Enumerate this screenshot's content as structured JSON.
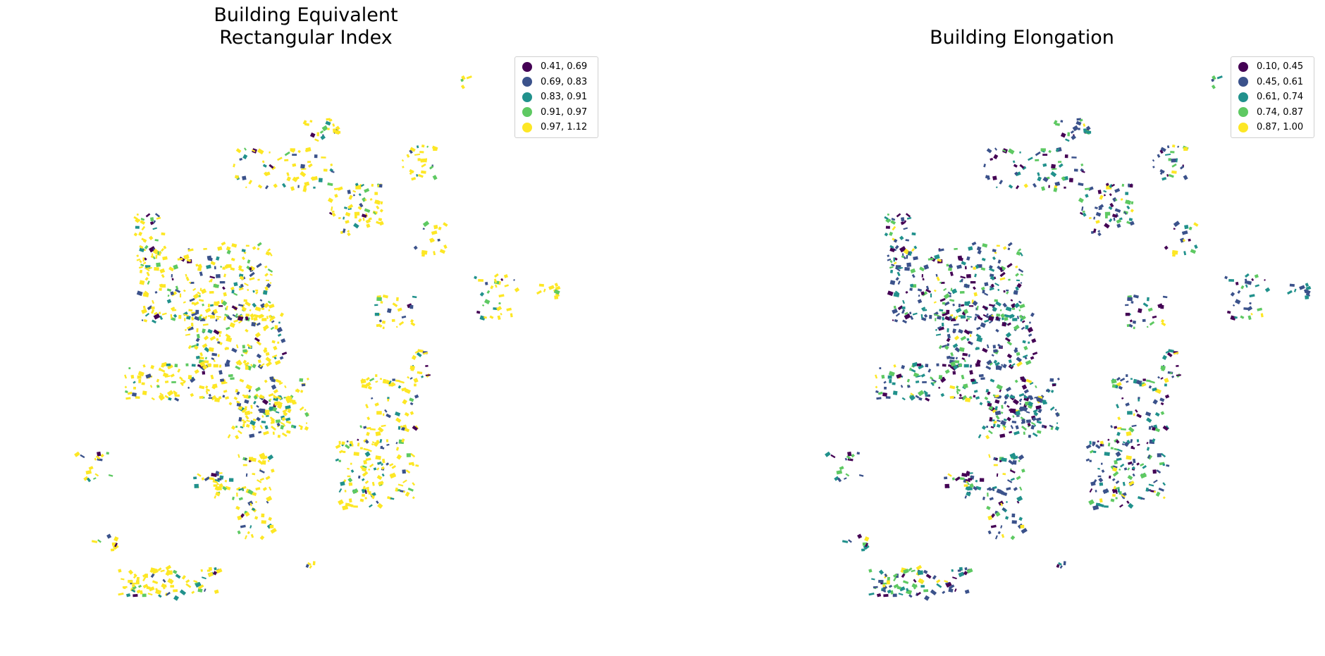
{
  "maps": [
    {
      "id": "left",
      "title": "Building Equivalent\nRectangular Index",
      "legend": [
        {
          "label": "0.41, 0.69",
          "color": "#440154"
        },
        {
          "label": "0.69, 0.83",
          "color": "#3b528b"
        },
        {
          "label": "0.83, 0.91",
          "color": "#21918c"
        },
        {
          "label": "0.91, 0.97",
          "color": "#5ec962"
        },
        {
          "label": "0.97, 1.12",
          "color": "#fde725"
        }
      ]
    },
    {
      "id": "right",
      "title": "Building Elongation",
      "legend": [
        {
          "label": "0.10, 0.45",
          "color": "#440154"
        },
        {
          "label": "0.45, 0.61",
          "color": "#3b528b"
        },
        {
          "label": "0.61, 0.74",
          "color": "#21918c"
        },
        {
          "label": "0.74, 0.87",
          "color": "#5ec962"
        },
        {
          "label": "0.87, 1.00",
          "color": "#fde725"
        }
      ]
    }
  ],
  "palette": [
    "#440154",
    "#3b528b",
    "#21918c",
    "#5ec962",
    "#fde725"
  ],
  "chart_data": {
    "type": "choropleth-map",
    "panels": [
      {
        "title": "Building Equivalent Rectangular Index",
        "classes": [
          "0.41, 0.69",
          "0.69, 0.83",
          "0.83, 0.91",
          "0.91, 0.97",
          "0.97, 1.12"
        ],
        "legend_position": "top-right",
        "axes": "off"
      },
      {
        "title": "Building Elongation",
        "classes": [
          "0.10, 0.45",
          "0.45, 0.61",
          "0.61, 0.74",
          "0.74, 0.87",
          "0.87, 1.00"
        ],
        "legend_position": "top-right",
        "axes": "off"
      }
    ]
  }
}
